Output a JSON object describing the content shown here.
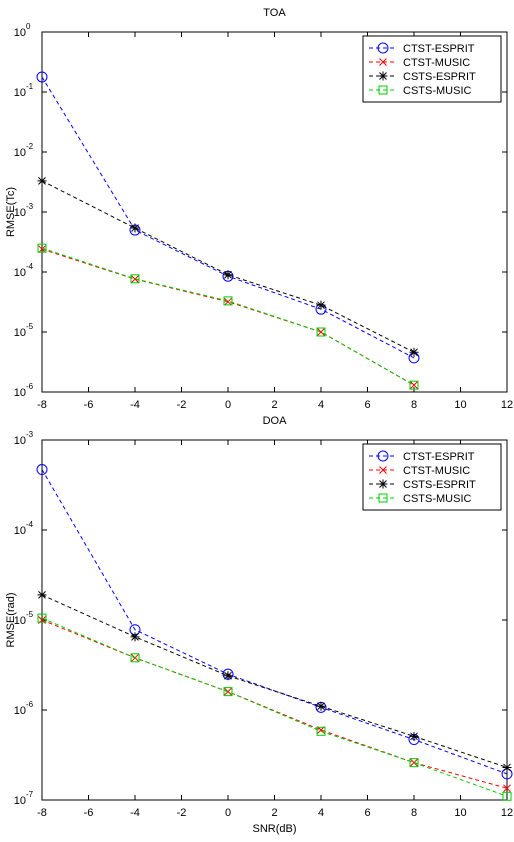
{
  "chart_data": [
    {
      "type": "line",
      "title": "TOA",
      "ylabel": "RMSE(Tc)",
      "log_y": true,
      "grid": false,
      "legend": "upper right",
      "x": [
        -8,
        -4,
        0,
        4,
        8
      ],
      "xlim": [
        -8,
        12
      ],
      "xticks": [
        -8,
        -6,
        -4,
        -2,
        0,
        2,
        4,
        6,
        8,
        10,
        12
      ],
      "ylim": [
        1e-06,
        1
      ],
      "yticks": [
        {
          "value": 1e-06,
          "label": "10",
          "exp": "-6"
        },
        {
          "value": 1e-05,
          "label": "10",
          "exp": "-5"
        },
        {
          "value": 0.0001,
          "label": "10",
          "exp": "-4"
        },
        {
          "value": 0.001,
          "label": "10",
          "exp": "-3"
        },
        {
          "value": 0.01,
          "label": "10",
          "exp": "-2"
        },
        {
          "value": 0.1,
          "label": "10",
          "exp": "-1"
        },
        {
          "value": 1,
          "label": "10",
          "exp": "0"
        }
      ],
      "series": [
        {
          "name": "CTST-ESPRIT",
          "color": "#0000ff",
          "marker": "circle",
          "values": [
            0.178,
            0.0005,
            8.5e-05,
            2.4e-05,
            3.7e-06
          ]
        },
        {
          "name": "CTST-MUSIC",
          "color": "#ff0000",
          "marker": "x",
          "values": [
            0.00024,
            7.6e-05,
            3.2e-05,
            1e-05,
            1.3e-06
          ]
        },
        {
          "name": "CSTS-ESPRIT",
          "color": "#000000",
          "marker": "star",
          "values": [
            0.0033,
            0.00054,
            9e-05,
            2.8e-05,
            4.6e-06
          ]
        },
        {
          "name": "CSTS-MUSIC",
          "color": "#00cc00",
          "marker": "square",
          "values": [
            0.00025,
            7.7e-05,
            3.3e-05,
            1e-05,
            1.3e-06
          ]
        }
      ]
    },
    {
      "type": "line",
      "title": "DOA",
      "xlabel": "SNR(dB)",
      "ylabel": "RMSE(rad)",
      "log_y": true,
      "grid": false,
      "legend": "upper right",
      "x": [
        -8,
        -4,
        0,
        4,
        8,
        12
      ],
      "xlim": [
        -8,
        12
      ],
      "xticks": [
        -8,
        -6,
        -4,
        -2,
        0,
        2,
        4,
        6,
        8,
        10,
        12
      ],
      "ylim": [
        1e-07,
        0.001
      ],
      "yticks": [
        {
          "value": 1e-07,
          "label": "10",
          "exp": "-7"
        },
        {
          "value": 1e-06,
          "label": "10",
          "exp": "-6"
        },
        {
          "value": 1e-05,
          "label": "10",
          "exp": "-5"
        },
        {
          "value": 0.0001,
          "label": "10",
          "exp": "-4"
        },
        {
          "value": 0.001,
          "label": "10",
          "exp": "-3"
        }
      ],
      "series": [
        {
          "name": "CTST-ESPRIT",
          "color": "#0000ff",
          "marker": "circle",
          "values": [
            0.00047,
            7.8e-06,
            2.5e-06,
            1.07e-06,
            4.7e-07,
            1.95e-07
          ]
        },
        {
          "name": "CTST-MUSIC",
          "color": "#ff0000",
          "marker": "x",
          "values": [
            1e-05,
            3.8e-06,
            1.6e-06,
            6e-07,
            2.6e-07,
            1.35e-07
          ]
        },
        {
          "name": "CSTS-ESPRIT",
          "color": "#000000",
          "marker": "star",
          "values": [
            1.9e-05,
            6.5e-06,
            2.4e-06,
            1.1e-06,
            5.1e-07,
            2.3e-07
          ]
        },
        {
          "name": "CSTS-MUSIC",
          "color": "#00cc00",
          "marker": "square",
          "values": [
            1.05e-05,
            3.8e-06,
            1.6e-06,
            5.8e-07,
            2.6e-07,
            1.1e-07
          ]
        }
      ]
    }
  ]
}
